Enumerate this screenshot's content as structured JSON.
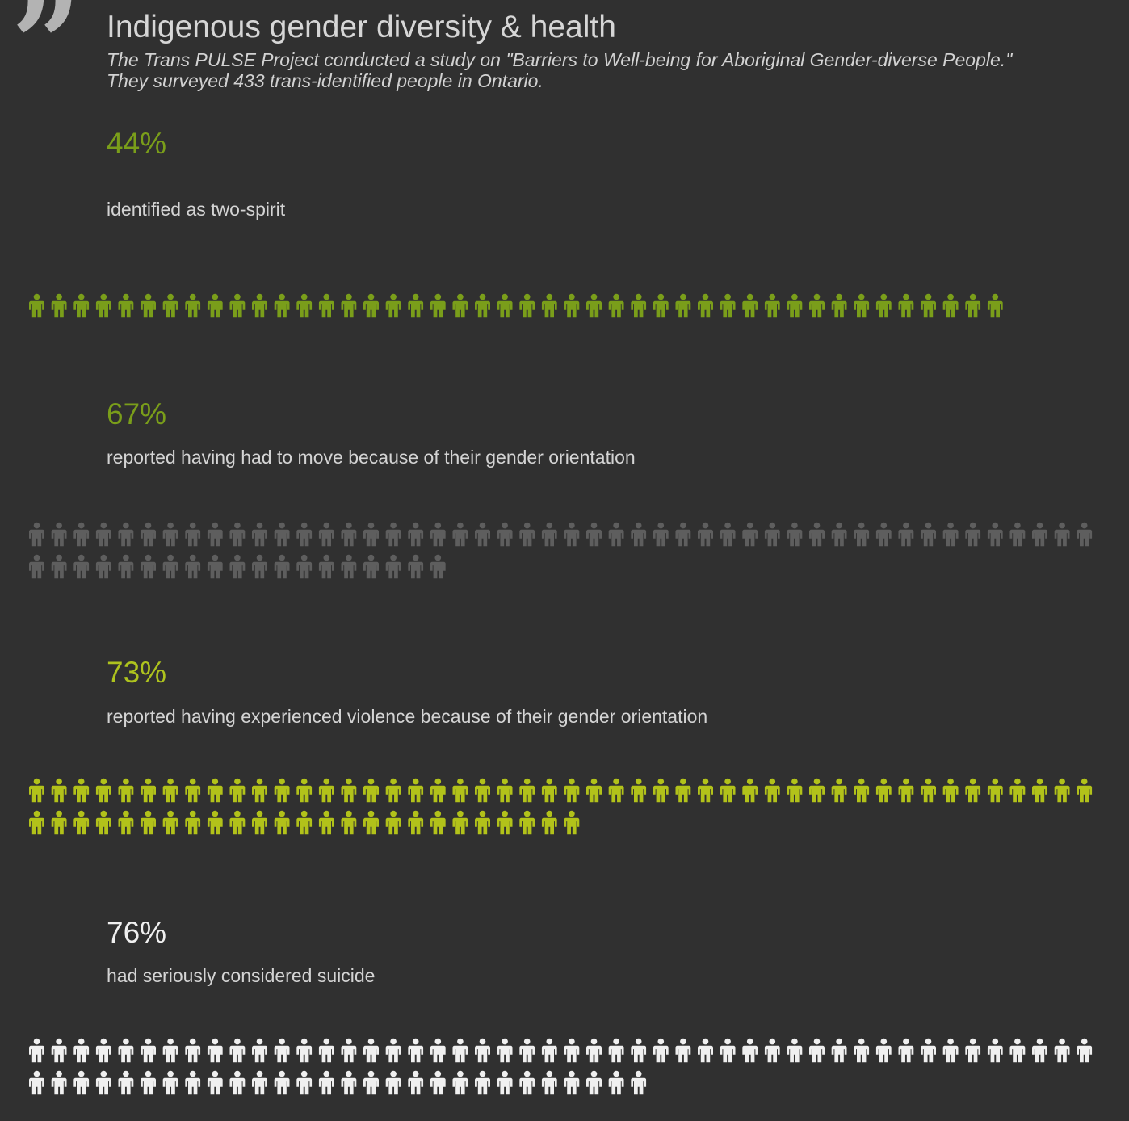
{
  "header": {
    "title": "Indigenous gender diversity & health",
    "subtitle_line1": "The Trans PULSE Project conducted a study on \"Barriers to Well-being for Aboriginal Gender-diverse People.\"",
    "subtitle_line2": "They surveyed 433 trans-identified people in Ontario.",
    "quote_icon": "quote-mark-icon",
    "quote_glyph": "”"
  },
  "chart_data": {
    "type": "pictogram",
    "icon": "person-icon",
    "icons_per_full_row": 48,
    "stats": [
      {
        "value": 44,
        "label": "44%",
        "description": "identified as two-spirit",
        "color": "#7a9e1a"
      },
      {
        "value": 67,
        "label": "67%",
        "description": "reported having had to move because of their gender orientation",
        "color": "#5e5e5e"
      },
      {
        "value": 73,
        "label": "73%",
        "description": "reported having experienced violence because of their gender orientation",
        "color": "#b2c21a"
      },
      {
        "value": 76,
        "label": "76%",
        "description": "had seriously considered suicide",
        "color": "#f0f0f0"
      }
    ],
    "label_colors": [
      "#7a9e1a",
      "#7a9e1a",
      "#aec31e",
      "#f0f0f0"
    ]
  }
}
